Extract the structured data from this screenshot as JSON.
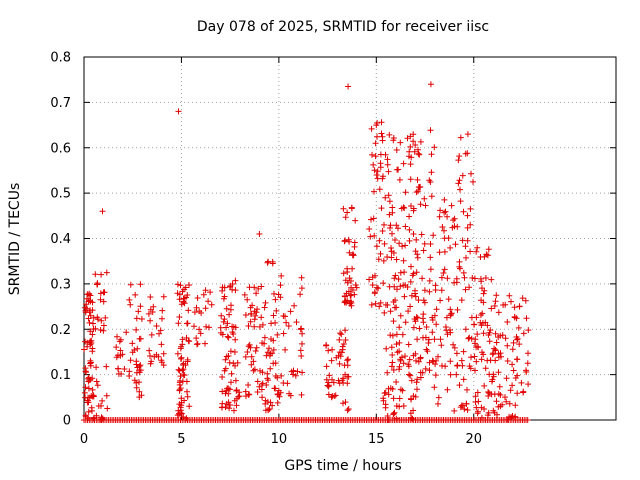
{
  "chart_data": {
    "type": "scatter",
    "title": "Day 078 of 2025, SRMTID for receiver iisc",
    "xlabel": "GPS time / hours",
    "ylabel": "SRMTID / TECUs",
    "xlim": [
      0,
      27.3
    ],
    "ylim": [
      0,
      0.8
    ],
    "xticks": [
      0,
      5,
      10,
      15,
      20
    ],
    "xtick_labels": [
      "0",
      "5",
      "10",
      "15",
      "20"
    ],
    "yticks": [
      0,
      0.1,
      0.2,
      0.3,
      0.4,
      0.5,
      0.6,
      0.7,
      0.8
    ],
    "ytick_labels": [
      "0",
      "0.1",
      "0.2",
      "0.3",
      "0.4",
      "0.5",
      "0.6",
      "0.7",
      "0.8"
    ],
    "grid": true,
    "marker": "+",
    "color": "#e00000",
    "series": [
      {
        "name": "SRMTID",
        "clusters": [
          {
            "x": [
              0.0,
              0.5
            ],
            "y": [
              0.0,
              0.28
            ],
            "n": 70
          },
          {
            "x": [
              0.5,
              1.2
            ],
            "y": [
              0.0,
              0.33
            ],
            "n": 35
          },
          {
            "x": [
              1.6,
              2.2
            ],
            "y": [
              0.1,
              0.2
            ],
            "n": 15
          },
          {
            "x": [
              2.3,
              3.0
            ],
            "y": [
              0.05,
              0.3
            ],
            "n": 35
          },
          {
            "x": [
              3.3,
              4.3
            ],
            "y": [
              0.12,
              0.29
            ],
            "n": 25
          },
          {
            "x": [
              4.8,
              5.4
            ],
            "y": [
              0.0,
              0.3
            ],
            "n": 70
          },
          {
            "x": [
              5.6,
              6.6
            ],
            "y": [
              0.15,
              0.29
            ],
            "n": 20
          },
          {
            "x": [
              7.0,
              8.0
            ],
            "y": [
              0.02,
              0.31
            ],
            "n": 70
          },
          {
            "x": [
              8.2,
              9.2
            ],
            "y": [
              0.05,
              0.3
            ],
            "n": 50
          },
          {
            "x": [
              9.2,
              10.0
            ],
            "y": [
              0.02,
              0.35
            ],
            "n": 50
          },
          {
            "x": [
              10.0,
              11.2
            ],
            "y": [
              0.05,
              0.32
            ],
            "n": 35
          },
          {
            "x": [
              12.4,
              13.0
            ],
            "y": [
              0.05,
              0.18
            ],
            "n": 20
          },
          {
            "x": [
              13.0,
              13.6
            ],
            "y": [
              0.02,
              0.2
            ],
            "n": 30
          },
          {
            "x": [
              13.3,
              14.0
            ],
            "y": [
              0.25,
              0.48
            ],
            "n": 45
          },
          {
            "x": [
              14.6,
              15.3
            ],
            "y": [
              0.25,
              0.66
            ],
            "n": 40
          },
          {
            "x": [
              15.3,
              16.2
            ],
            "y": [
              0.0,
              0.63
            ],
            "n": 90
          },
          {
            "x": [
              16.2,
              17.1
            ],
            "y": [
              0.0,
              0.63
            ],
            "n": 90
          },
          {
            "x": [
              17.1,
              18.1
            ],
            "y": [
              0.05,
              0.64
            ],
            "n": 70
          },
          {
            "x": [
              18.1,
              19.1
            ],
            "y": [
              0.02,
              0.5
            ],
            "n": 50
          },
          {
            "x": [
              19.1,
              20.0
            ],
            "y": [
              0.02,
              0.63
            ],
            "n": 60
          },
          {
            "x": [
              20.0,
              21.0
            ],
            "y": [
              0.0,
              0.38
            ],
            "n": 70
          },
          {
            "x": [
              21.0,
              22.0
            ],
            "y": [
              0.0,
              0.28
            ],
            "n": 50
          },
          {
            "x": [
              22.0,
              22.8
            ],
            "y": [
              0.0,
              0.27
            ],
            "n": 35
          }
        ],
        "outliers": [
          {
            "x": 0.95,
            "y": 0.46
          },
          {
            "x": 4.85,
            "y": 0.68
          },
          {
            "x": 9.0,
            "y": 0.41
          },
          {
            "x": 13.55,
            "y": 0.735
          },
          {
            "x": 17.8,
            "y": 0.74
          },
          {
            "x": 15.0,
            "y": 0.65
          },
          {
            "x": 19.7,
            "y": 0.63
          }
        ],
        "zero_band": {
          "x": [
            0,
            22.8
          ],
          "y": 0.0
        }
      }
    ]
  }
}
